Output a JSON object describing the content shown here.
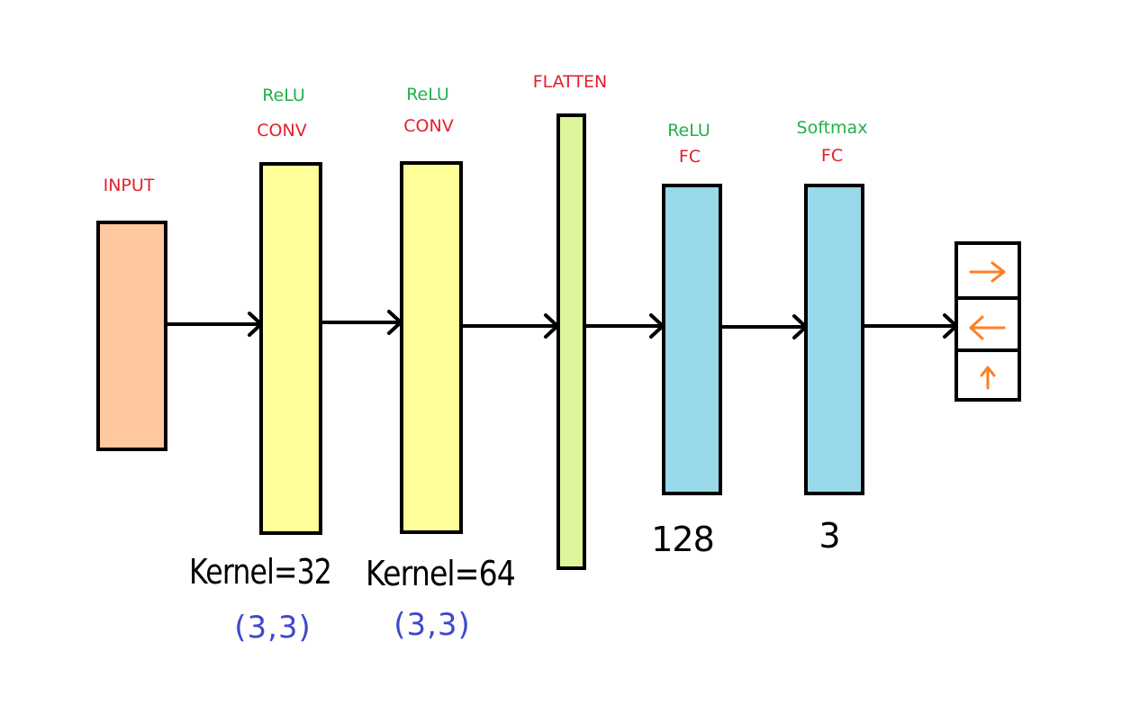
{
  "colors": {
    "label_red": "#e0202c",
    "label_green": "#22b04b",
    "input_fill": "#ffc89f",
    "conv_fill": "#ffff99",
    "flatten_fill": "#dcf59a",
    "fc_fill": "#99d9ea",
    "outline": "#000000",
    "handwritten_blue": "#3f48cc",
    "output_arrow": "#ff7f27"
  },
  "layers": {
    "input": {
      "label": "INPUT"
    },
    "conv1": {
      "activation": "ReLU",
      "label": "CONV",
      "kernel": "Kernel=32",
      "size": "(3,3)"
    },
    "conv2": {
      "activation": "ReLU",
      "label": "CONV",
      "kernel": "Kernel=64",
      "size": "(3,3)"
    },
    "flatten": {
      "label": "FLATTEN"
    },
    "fc1": {
      "activation": "ReLU",
      "label": "FC",
      "units": "128"
    },
    "fc2": {
      "activation": "Softmax",
      "label": "FC",
      "units": "3"
    }
  },
  "output": {
    "icons": [
      "right-arrow-icon",
      "left-arrow-icon",
      "up-arrow-icon"
    ]
  }
}
